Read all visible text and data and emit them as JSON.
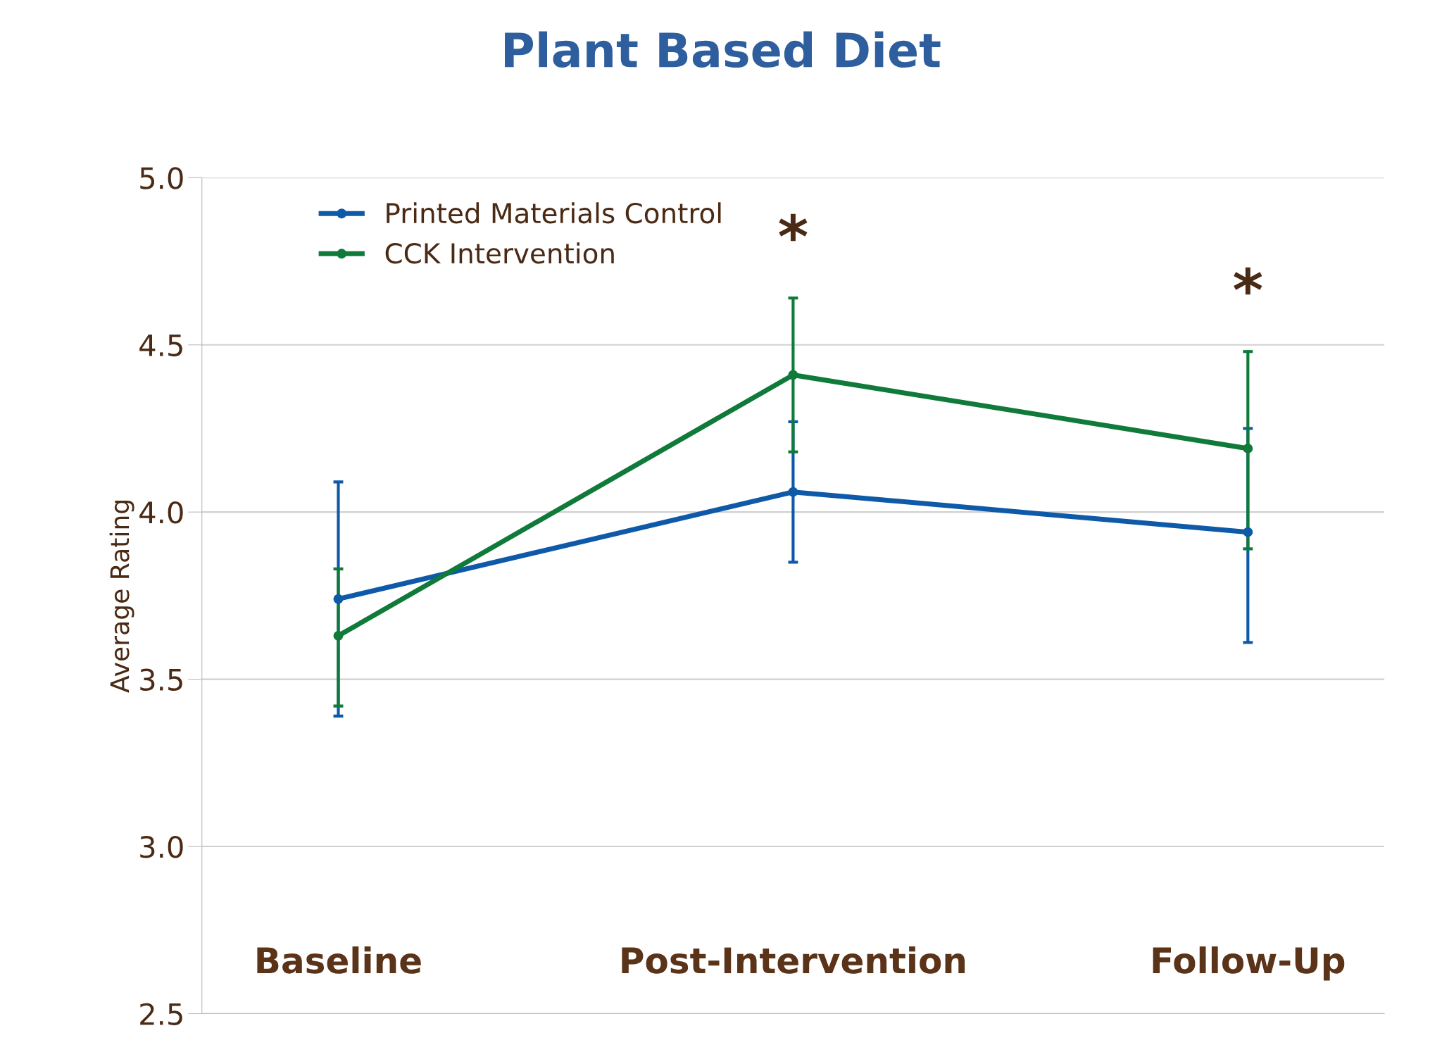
{
  "chart_data": {
    "type": "line",
    "title": "Plant Based Diet",
    "ylabel": "Average Rating",
    "categories": [
      "Baseline",
      "Post-Intervention",
      "Follow-Up"
    ],
    "series": [
      {
        "name": "Printed Materials Control",
        "color": "#0f5aa8",
        "values": [
          3.74,
          4.06,
          3.94
        ],
        "errors": [
          [
            3.39,
            4.09
          ],
          [
            3.85,
            4.27
          ],
          [
            3.61,
            4.25
          ]
        ]
      },
      {
        "name": "CCK Intervention",
        "color": "#0f7a3a",
        "values": [
          3.63,
          4.41,
          4.19
        ],
        "errors": [
          [
            3.42,
            3.83
          ],
          [
            4.18,
            4.64
          ],
          [
            3.89,
            4.48
          ]
        ]
      }
    ],
    "annotations": [
      "*",
      "*"
    ],
    "ylim": [
      2.5,
      5.0
    ],
    "yticks": [
      2.5,
      {
        "value": 3,
        "label": "3.0"
      },
      3.5,
      {
        "value": 4,
        "label": "4.0"
      },
      4.5,
      {
        "value": 5,
        "label": "5.0"
      }
    ],
    "grid": "y",
    "legend": "top left",
    "marker": "circle",
    "line_style": "solid"
  }
}
